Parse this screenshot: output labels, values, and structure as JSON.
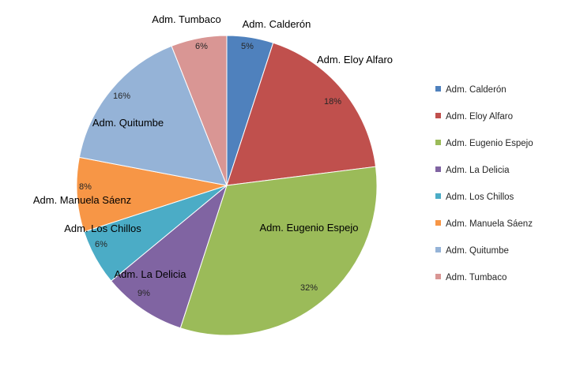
{
  "chart_data": {
    "type": "pie",
    "categories": [
      "Adm. Calderón",
      "Adm. Eloy Alfaro",
      "Adm. Eugenio Espejo",
      "Adm. La Delicia",
      "Adm. Los Chillos",
      "Adm. Manuela Sáenz",
      "Adm. Quitumbe",
      "Adm. Tumbaco"
    ],
    "values": [
      5,
      18,
      32,
      9,
      6,
      8,
      16,
      6
    ],
    "value_labels": [
      "5%",
      "18%",
      "32%",
      "9%",
      "6%",
      "8%",
      "16%",
      "6%"
    ],
    "colors": [
      "#4F81BD",
      "#C0504D",
      "#9BBB59",
      "#8064A2",
      "#4BACC6",
      "#F79646",
      "#95B3D7",
      "#D99694"
    ],
    "legend_position": "right",
    "start_angle": "12 o'clock",
    "direction": "clockwise"
  }
}
